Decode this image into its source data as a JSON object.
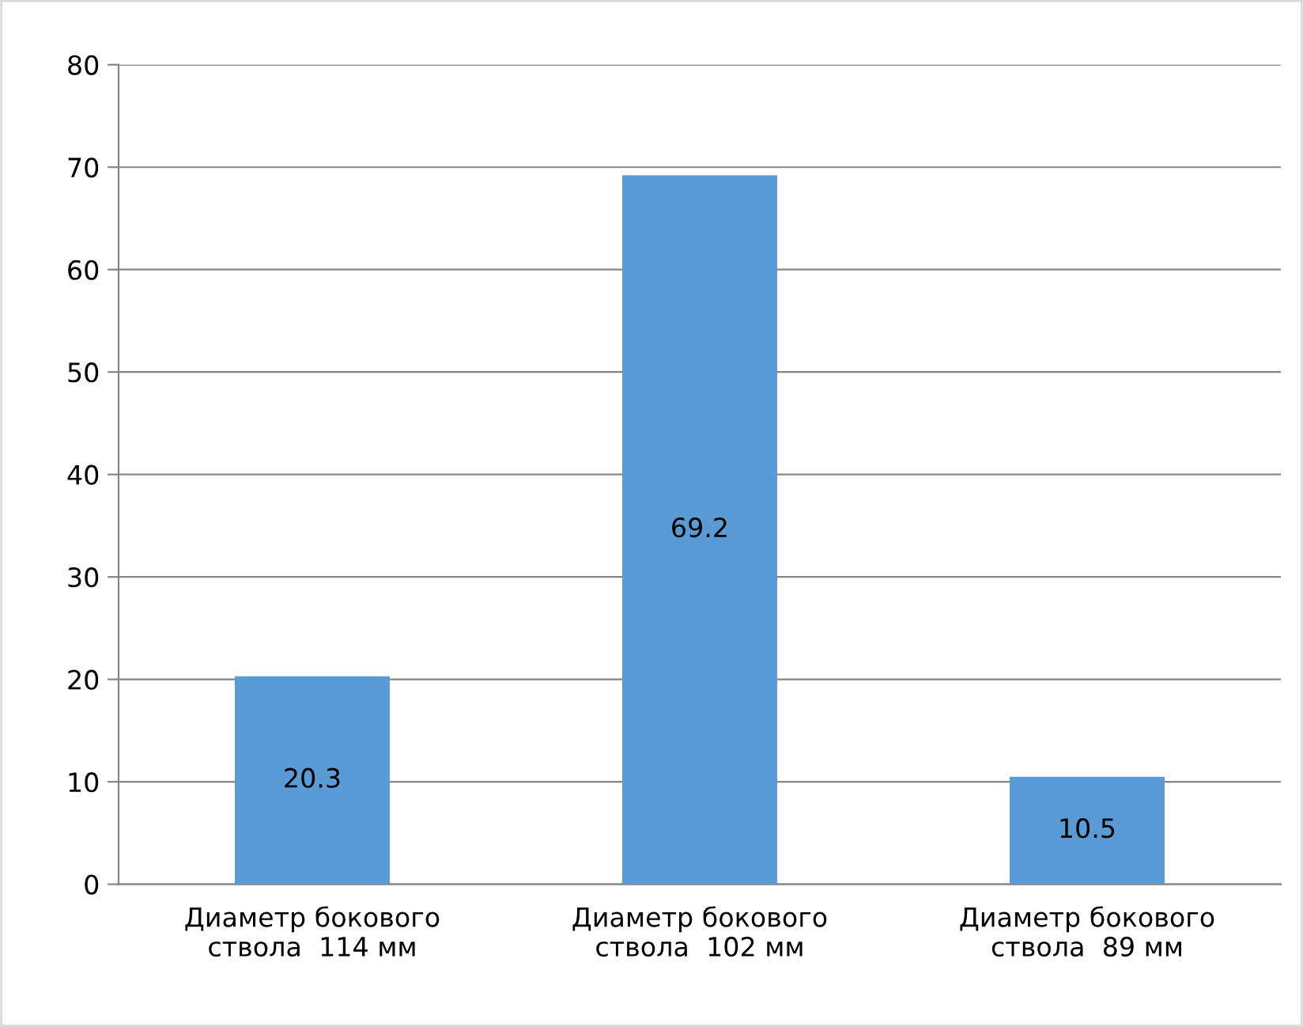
{
  "chart_data": {
    "type": "bar",
    "categories": [
      "Диаметр бокового\nствола  114 мм",
      "Диаметр бокового\nствола  102 мм",
      "Диаметр бокового\nствола  89 мм"
    ],
    "values": [
      20.3,
      69.2,
      10.5
    ],
    "color": "#5b9bd5",
    "ylim": [
      0,
      80
    ],
    "yticks": [
      0,
      10,
      20,
      30,
      40,
      50,
      60,
      70,
      80
    ],
    "grid": "y",
    "data_labels": true
  }
}
